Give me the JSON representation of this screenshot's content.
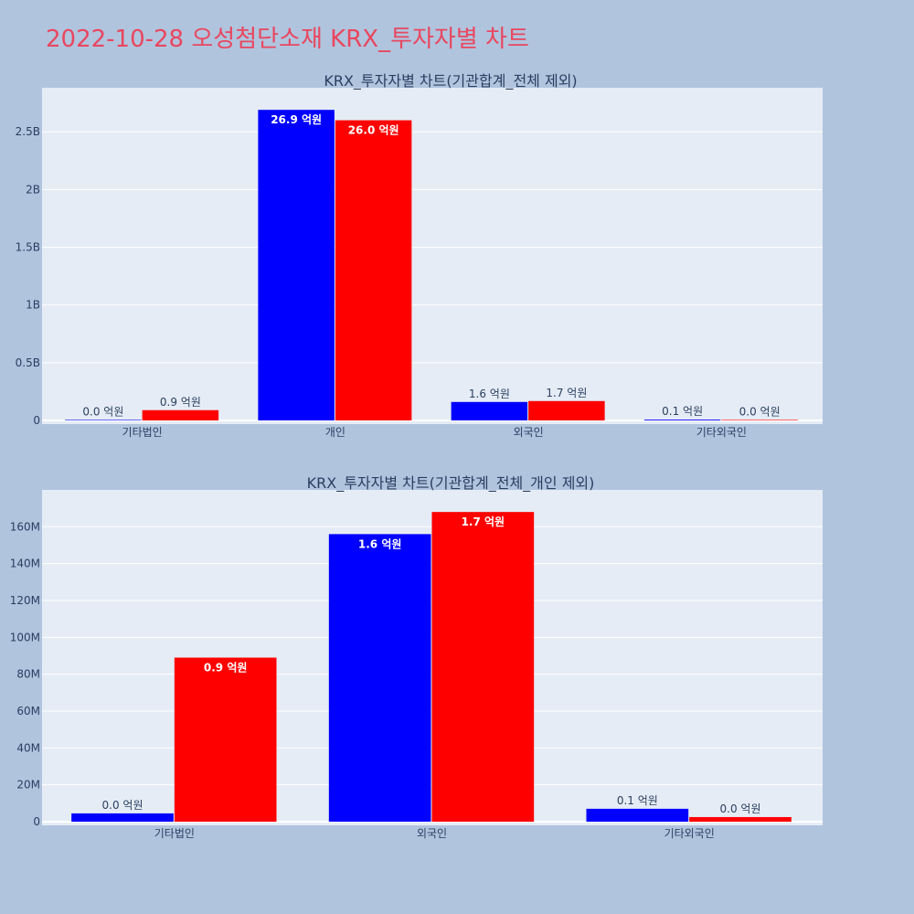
{
  "page": {
    "title": "2022-10-28 오성첨단소재 KRX_투자자별 차트"
  },
  "chart_data": [
    {
      "type": "bar",
      "title": "KRX_투자자별 차트(기관합계_전체 제외)",
      "categories": [
        "기타법인",
        "개인",
        "외국인",
        "기타외국인"
      ],
      "series": [
        {
          "color": "#0000ff",
          "values": [
            0,
            2690000000,
            160000000,
            7000000
          ],
          "labels": [
            "0.0 억원",
            "26.9 억원",
            "1.6 억원",
            "0.1 억원"
          ]
        },
        {
          "color": "#ff0000",
          "values": [
            89000000,
            2600000000,
            168000000,
            2500000
          ],
          "labels": [
            "0.9 억원",
            "26.0 억원",
            "1.7 억원",
            "0.0 억원"
          ]
        }
      ],
      "ylim": [
        0,
        2850000000
      ],
      "yticks": [
        0,
        500000000,
        1000000000,
        1500000000,
        2000000000,
        2500000000
      ],
      "ytick_labels": [
        "0",
        "0.5B",
        "1B",
        "1.5B",
        "2B",
        "2.5B"
      ],
      "grid": true
    },
    {
      "type": "bar",
      "title": "KRX_투자자별 차트(기관합계_전체_개인 제외)",
      "categories": [
        "기타법인",
        "외국인",
        "기타외국인"
      ],
      "series": [
        {
          "color": "#0000ff",
          "values": [
            4500000,
            156000000,
            7000000
          ],
          "labels": [
            "0.0 억원",
            "1.6 억원",
            "0.1 억원"
          ]
        },
        {
          "color": "#ff0000",
          "values": [
            89000000,
            168000000,
            2500000
          ],
          "labels": [
            "0.9 억원",
            "1.7 억원",
            "0.0 억원"
          ]
        }
      ],
      "ylim": [
        0,
        178000000
      ],
      "yticks": [
        0,
        20000000,
        40000000,
        60000000,
        80000000,
        100000000,
        120000000,
        140000000,
        160000000
      ],
      "ytick_labels": [
        "0",
        "20M",
        "40M",
        "60M",
        "80M",
        "100M",
        "120M",
        "140M",
        "160M"
      ],
      "grid": true
    }
  ]
}
